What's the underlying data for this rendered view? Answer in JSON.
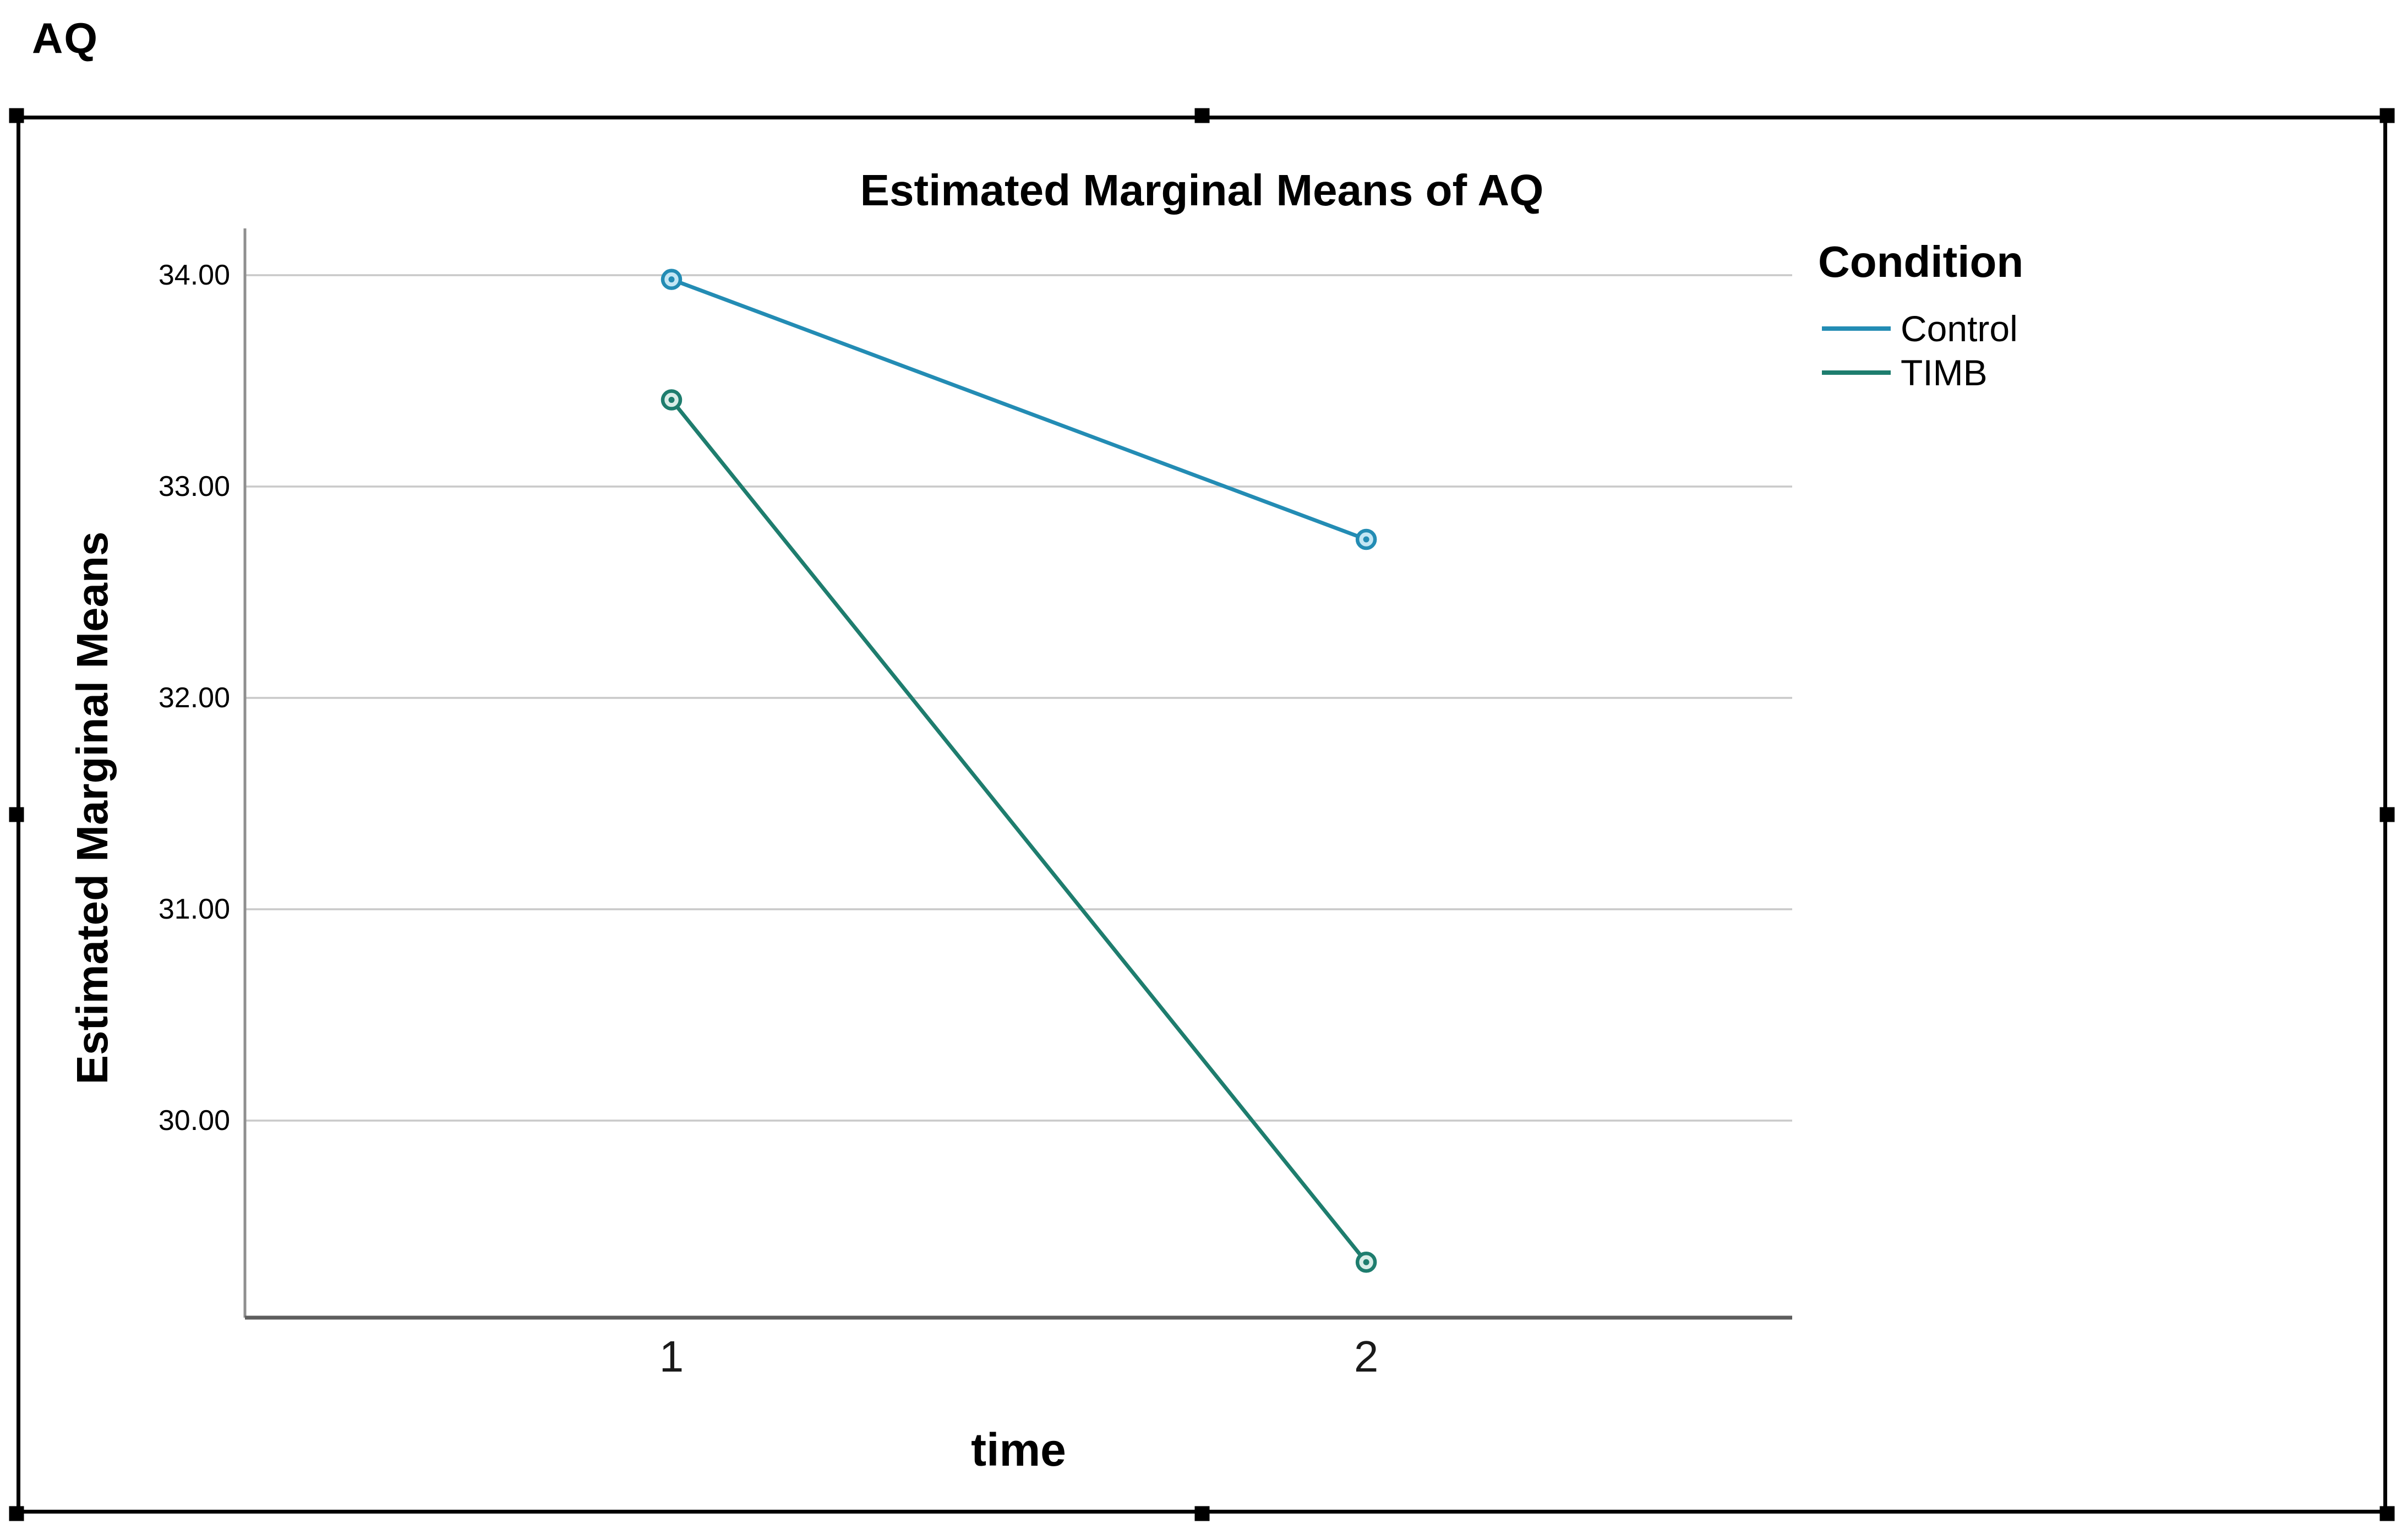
{
  "page": {
    "outer_label": "AQ"
  },
  "chart": {
    "title": "Estimated Marginal Means of AQ",
    "x_axis_label": "time",
    "y_axis_label": "Estimated Marginal Means",
    "legend_title": "Condition"
  },
  "chart_data": {
    "type": "line",
    "title": "Estimated Marginal Means of AQ",
    "xlabel": "time",
    "ylabel": "Estimated Marginal Means",
    "categories": [
      "1",
      "2"
    ],
    "series": [
      {
        "name": "Control",
        "values": [
          33.98,
          32.75
        ],
        "color": "#238CB4",
        "marker_fill": "#C3E6F4"
      },
      {
        "name": "TIMB",
        "values": [
          33.41,
          29.33
        ],
        "color": "#1E7D6E",
        "marker_fill": "#D9EDE8"
      }
    ],
    "y_ticks": [
      34,
      33,
      32,
      31,
      30
    ],
    "y_tick_labels": [
      "34.00",
      "33.00",
      "32.00",
      "31.00",
      "30.00"
    ],
    "ylim": [
      29.07,
      34.21
    ],
    "grid": "horizontal",
    "grid_color": "#C9C9C9",
    "axis_color": "#6E6E6E",
    "legend_title": "Condition",
    "legend_position": "right",
    "marker": "circle-dot"
  }
}
